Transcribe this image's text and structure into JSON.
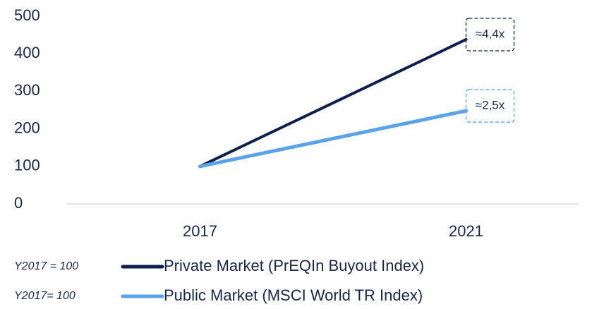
{
  "chart_data": {
    "type": "line",
    "categories": [
      "2017",
      "2021"
    ],
    "series": [
      {
        "name": "Private Market (PrEQIn Buyout Index)",
        "note": "Y2017 = 100",
        "color": "#0e1f4d",
        "values": [
          100,
          438
        ]
      },
      {
        "name": "Public Market (MSCI World TR Index)",
        "note": "Y2017= 100",
        "color": "#5ba3e8",
        "values": [
          100,
          248
        ]
      }
    ],
    "annotations": [
      {
        "text": "≈4,4x"
      },
      {
        "text": "≈2,5x"
      }
    ],
    "ylim": [
      0,
      500
    ],
    "yticks": [
      0,
      100,
      200,
      300,
      400,
      500
    ],
    "grid": false
  }
}
